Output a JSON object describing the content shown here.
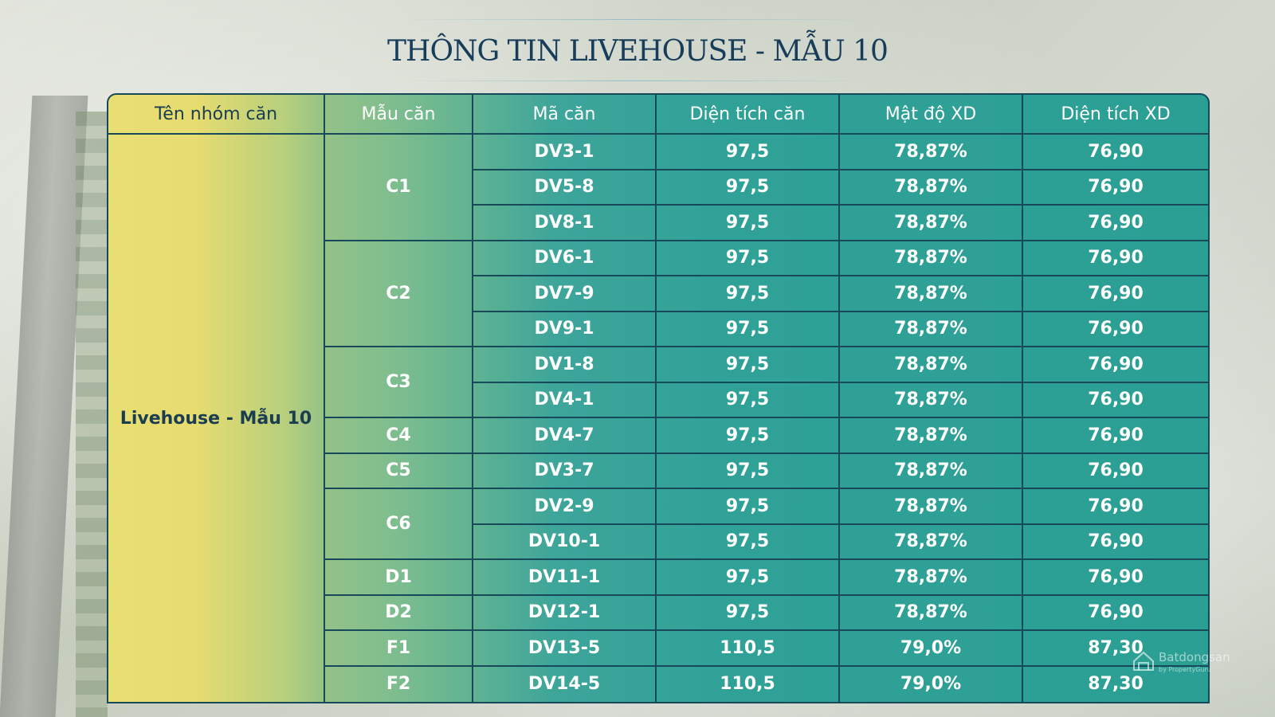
{
  "title": "THÔNG TIN LIVEHOUSE - MẪU 10",
  "headers": [
    "Tên nhóm căn",
    "Mẫu căn",
    "Mã căn",
    "Diện tích căn",
    "Mật độ XD",
    "Diện tích XD"
  ],
  "group_name": "Livehouse - Mẫu 10",
  "templates": [
    {
      "label": "C1",
      "rows": 3
    },
    {
      "label": "C2",
      "rows": 3
    },
    {
      "label": "C3",
      "rows": 2
    },
    {
      "label": "C4",
      "rows": 1
    },
    {
      "label": "C5",
      "rows": 1
    },
    {
      "label": "C6",
      "rows": 2
    },
    {
      "label": "D1",
      "rows": 1
    },
    {
      "label": "D2",
      "rows": 1
    },
    {
      "label": "F1",
      "rows": 1
    },
    {
      "label": "F2",
      "rows": 1
    }
  ],
  "rows": [
    {
      "code": "DV3-1",
      "area": "97,5",
      "density": "78,87%",
      "build_area": "76,90"
    },
    {
      "code": "DV5-8",
      "area": "97,5",
      "density": "78,87%",
      "build_area": "76,90"
    },
    {
      "code": "DV8-1",
      "area": "97,5",
      "density": "78,87%",
      "build_area": "76,90"
    },
    {
      "code": "DV6-1",
      "area": "97,5",
      "density": "78,87%",
      "build_area": "76,90"
    },
    {
      "code": "DV7-9",
      "area": "97,5",
      "density": "78,87%",
      "build_area": "76,90"
    },
    {
      "code": "DV9-1",
      "area": "97,5",
      "density": "78,87%",
      "build_area": "76,90"
    },
    {
      "code": "DV1-8",
      "area": "97,5",
      "density": "78,87%",
      "build_area": "76,90"
    },
    {
      "code": "DV4-1",
      "area": "97,5",
      "density": "78,87%",
      "build_area": "76,90"
    },
    {
      "code": "DV4-7",
      "area": "97,5",
      "density": "78,87%",
      "build_area": "76,90"
    },
    {
      "code": "DV3-7",
      "area": "97,5",
      "density": "78,87%",
      "build_area": "76,90"
    },
    {
      "code": "DV2-9",
      "area": "97,5",
      "density": "78,87%",
      "build_area": "76,90"
    },
    {
      "code": "DV10-1",
      "area": "97,5",
      "density": "78,87%",
      "build_area": "76,90"
    },
    {
      "code": "DV11-1",
      "area": "97,5",
      "density": "78,87%",
      "build_area": "76,90"
    },
    {
      "code": "DV12-1",
      "area": "97,5",
      "density": "78,87%",
      "build_area": "76,90"
    },
    {
      "code": "DV13-5",
      "area": "110,5",
      "density": "79,0%",
      "build_area": "87,30"
    },
    {
      "code": "DV14-5",
      "area": "110,5",
      "density": "79,0%",
      "build_area": "87,30"
    }
  ],
  "watermark": {
    "brand": "Batdongsan",
    "sub": "by PropertyGuru",
    "icon": "house-logo-icon"
  },
  "colors": {
    "header_dark": "#1b3d51",
    "teal": "#2c9f95",
    "yellow": "#e8de71",
    "border": "#17495a"
  }
}
